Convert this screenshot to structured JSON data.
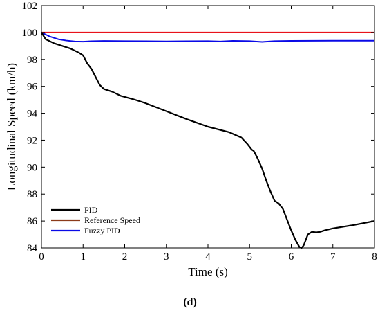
{
  "panel_label": "(d)",
  "chart_data": {
    "type": "line",
    "xlabel": "Time (s)",
    "ylabel": "Longitudinal Speed (km/h)",
    "xlim": [
      0,
      8
    ],
    "ylim": [
      84,
      102
    ],
    "xticks": [
      0,
      1,
      2,
      3,
      4,
      5,
      6,
      7,
      8
    ],
    "yticks": [
      84,
      86,
      88,
      90,
      92,
      94,
      96,
      98,
      100,
      102
    ],
    "grid": false,
    "legend_position": "bottom-left",
    "series": [
      {
        "name": "PID",
        "color": "#000000",
        "x": [
          0,
          0.1,
          0.3,
          0.5,
          0.7,
          0.9,
          1.0,
          1.1,
          1.2,
          1.3,
          1.4,
          1.5,
          1.7,
          1.9,
          2.2,
          2.5,
          3.0,
          3.5,
          4.0,
          4.5,
          4.8,
          4.95,
          5.05,
          5.1,
          5.2,
          5.3,
          5.4,
          5.5,
          5.6,
          5.7,
          5.8,
          5.9,
          6.0,
          6.1,
          6.2,
          6.25,
          6.3,
          6.4,
          6.5,
          6.6,
          6.7,
          6.8,
          7.0,
          7.5,
          8.0
        ],
        "y": [
          100.0,
          99.5,
          99.2,
          99.0,
          98.8,
          98.5,
          98.3,
          97.7,
          97.3,
          96.7,
          96.1,
          95.8,
          95.6,
          95.3,
          95.05,
          94.75,
          94.15,
          93.55,
          93.0,
          92.6,
          92.2,
          91.7,
          91.3,
          91.2,
          90.6,
          89.9,
          89.0,
          88.2,
          87.5,
          87.3,
          86.9,
          86.1,
          85.3,
          84.6,
          84.05,
          84.0,
          84.2,
          85.0,
          85.2,
          85.15,
          85.2,
          85.3,
          85.45,
          85.7,
          86.0
        ]
      },
      {
        "name": "Reference Speed",
        "color": "#e8131b",
        "x": [
          0,
          8
        ],
        "y": [
          100,
          100
        ]
      },
      {
        "name": "Fuzzy PID",
        "color": "#0a0ae6",
        "x": [
          0,
          0.2,
          0.4,
          0.6,
          0.8,
          1.0,
          1.2,
          1.5,
          2.0,
          2.5,
          3.0,
          3.5,
          4.0,
          4.3,
          4.6,
          5.0,
          5.3,
          5.6,
          6.0,
          7.0,
          8.0
        ],
        "y": [
          100.0,
          99.7,
          99.5,
          99.4,
          99.33,
          99.32,
          99.35,
          99.37,
          99.36,
          99.35,
          99.34,
          99.35,
          99.36,
          99.33,
          99.38,
          99.36,
          99.3,
          99.36,
          99.38,
          99.39,
          99.39
        ]
      }
    ],
    "legend_entries": [
      {
        "name": "PID",
        "color": "#000000"
      },
      {
        "name": "Reference Speed",
        "color": "#8b3a1a"
      },
      {
        "name": "Fuzzy PID",
        "color": "#0a0ae6"
      }
    ]
  }
}
